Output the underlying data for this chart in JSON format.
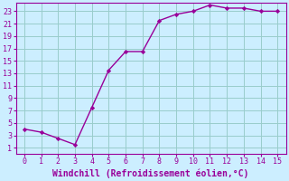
{
  "x": [
    0,
    1,
    2,
    3,
    4,
    5,
    6,
    7,
    8,
    9,
    10,
    11,
    12,
    13,
    14,
    15
  ],
  "y": [
    4.0,
    3.5,
    2.5,
    1.5,
    7.5,
    13.5,
    16.5,
    16.5,
    21.5,
    22.5,
    23.0,
    24.0,
    23.5,
    23.5,
    23.0,
    23.0
  ],
  "line_color": "#990099",
  "marker_color": "#990099",
  "bg_color": "#cceeff",
  "grid_color": "#99cccc",
  "xlabel": "Windchill (Refroidissement éolien,°C)",
  "xlabel_color": "#990099",
  "tick_color": "#990099",
  "spine_color": "#990099",
  "ylim_min": 0,
  "ylim_max": 24,
  "xlim_min": -0.5,
  "xlim_max": 15.5,
  "yticks": [
    1,
    3,
    5,
    7,
    9,
    11,
    13,
    15,
    17,
    19,
    21,
    23
  ],
  "xticks": [
    0,
    1,
    2,
    3,
    4,
    5,
    6,
    7,
    8,
    9,
    10,
    11,
    12,
    13,
    14,
    15
  ],
  "tick_fontsize": 6,
  "xlabel_fontsize": 7
}
